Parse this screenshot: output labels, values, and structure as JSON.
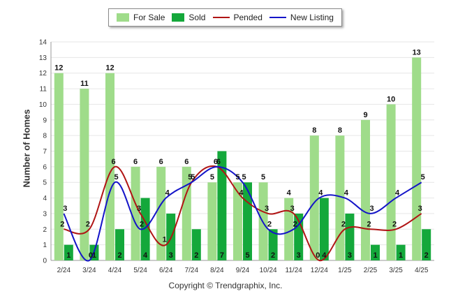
{
  "chart_data": {
    "type": "bar",
    "title": "",
    "xlabel": "",
    "ylabel": "Number of Homes",
    "ylim": [
      0,
      14
    ],
    "yticks": [
      0,
      1,
      2,
      3,
      4,
      5,
      6,
      7,
      8,
      9,
      10,
      11,
      12,
      13,
      14
    ],
    "grid": true,
    "legend_position": "top-center",
    "categories": [
      "2/24",
      "3/24",
      "4/24",
      "5/24",
      "6/24",
      "7/24",
      "8/24",
      "9/24",
      "10/24",
      "11/24",
      "12/24",
      "1/25",
      "2/25",
      "3/25",
      "4/25"
    ],
    "series": [
      {
        "name": "For Sale",
        "kind": "bar",
        "color": "#9fdc8a",
        "values": [
          12,
          11,
          12,
          6,
          6,
          6,
          5,
          5,
          5,
          4,
          8,
          8,
          9,
          10,
          13
        ]
      },
      {
        "name": "Sold",
        "kind": "bar",
        "color": "#14a83b",
        "values": [
          1,
          1,
          2,
          4,
          3,
          2,
          7,
          5,
          2,
          3,
          4,
          3,
          1,
          1,
          2
        ]
      },
      {
        "name": "Pended",
        "kind": "line",
        "color": "#b01414",
        "values": [
          2,
          2,
          6,
          3,
          1,
          5,
          6,
          4,
          3,
          3,
          0,
          2,
          2,
          2,
          3
        ]
      },
      {
        "name": "New Listing",
        "kind": "line",
        "color": "#1414c8",
        "values": [
          3,
          0,
          5,
          2,
          4,
          5,
          6,
          5,
          2,
          2,
          4,
          4,
          3,
          4,
          5
        ]
      }
    ]
  },
  "footer": {
    "copyright": "Copyright © Trendgraphix, Inc."
  }
}
